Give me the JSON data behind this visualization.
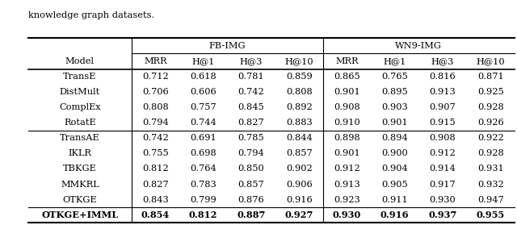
{
  "caption": "knowledge graph datasets.",
  "header_span": [
    "FB-IMG",
    "WN9-IMG"
  ],
  "header": [
    "Model",
    "MRR",
    "H@1",
    "H@3",
    "H@10",
    "MRR",
    "H@1",
    "H@3",
    "H@10"
  ],
  "group1": [
    [
      "TransE",
      "0.712",
      "0.618",
      "0.781",
      "0.859",
      "0.865",
      "0.765",
      "0.816",
      "0.871"
    ],
    [
      "DistMult",
      "0.706",
      "0.606",
      "0.742",
      "0.808",
      "0.901",
      "0.895",
      "0.913",
      "0.925"
    ],
    [
      "ComplEx",
      "0.808",
      "0.757",
      "0.845",
      "0.892",
      "0.908",
      "0.903",
      "0.907",
      "0.928"
    ],
    [
      "RotatE",
      "0.794",
      "0.744",
      "0.827",
      "0.883",
      "0.910",
      "0.901",
      "0.915",
      "0.926"
    ]
  ],
  "group2": [
    [
      "TransAE",
      "0.742",
      "0.691",
      "0.785",
      "0.844",
      "0.898",
      "0.894",
      "0.908",
      "0.922"
    ],
    [
      "IKLR",
      "0.755",
      "0.698",
      "0.794",
      "0.857",
      "0.901",
      "0.900",
      "0.912",
      "0.928"
    ],
    [
      "TBKGE",
      "0.812",
      "0.764",
      "0.850",
      "0.902",
      "0.912",
      "0.904",
      "0.914",
      "0.931"
    ],
    [
      "MMKRL",
      "0.827",
      "0.783",
      "0.857",
      "0.906",
      "0.913",
      "0.905",
      "0.917",
      "0.932"
    ],
    [
      "OTKGE",
      "0.843",
      "0.799",
      "0.876",
      "0.916",
      "0.923",
      "0.911",
      "0.930",
      "0.947"
    ]
  ],
  "last_row": [
    "OTKGE+IMML",
    "0.854",
    "0.812",
    "0.887",
    "0.927",
    "0.930",
    "0.916",
    "0.937",
    "0.955"
  ],
  "col_widths": [
    1.55,
    0.72,
    0.72,
    0.72,
    0.72,
    0.72,
    0.72,
    0.72,
    0.72
  ],
  "figsize": [
    6.4,
    2.79
  ],
  "dpi": 100,
  "font_size": 8.2,
  "bg_color": "#ffffff",
  "text_color": "#000000"
}
